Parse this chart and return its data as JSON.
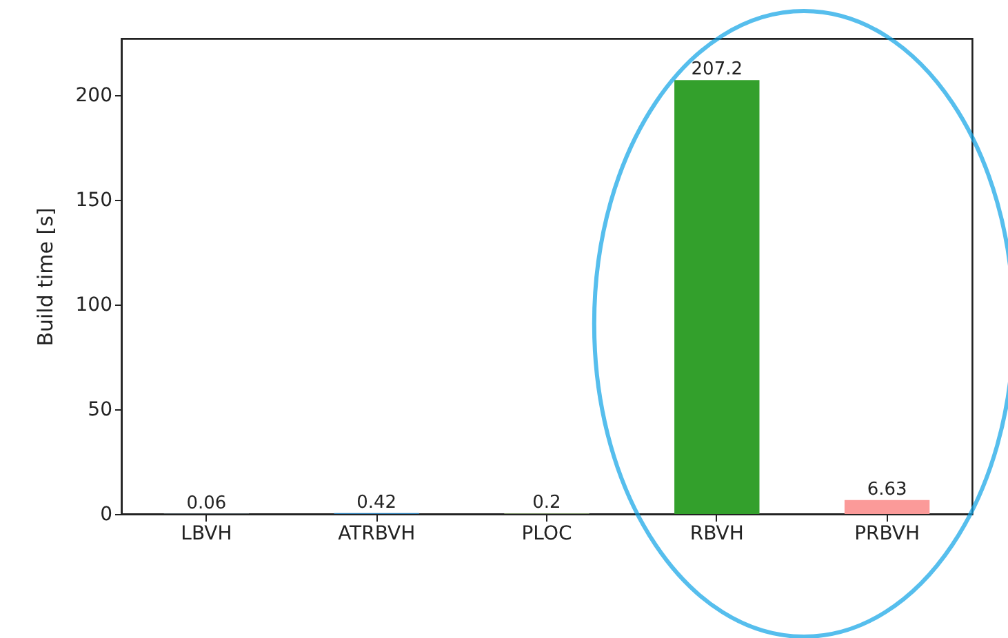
{
  "chart_data": {
    "type": "bar",
    "ylabel": "Build time [s]",
    "categories": [
      "LBVH",
      "ATRBVH",
      "PLOC",
      "RBVH",
      "PRBVH"
    ],
    "values": [
      0.06,
      0.42,
      0.2,
      207.2,
      6.63
    ],
    "colors": [
      "#a6cee3",
      "#1f78b4",
      "#b2df8a",
      "#33a02c",
      "#fb9a99"
    ],
    "ylim": [
      0,
      227
    ],
    "yticks": [
      0,
      50,
      100,
      150,
      200
    ],
    "grid": false,
    "data_labels": true
  }
}
